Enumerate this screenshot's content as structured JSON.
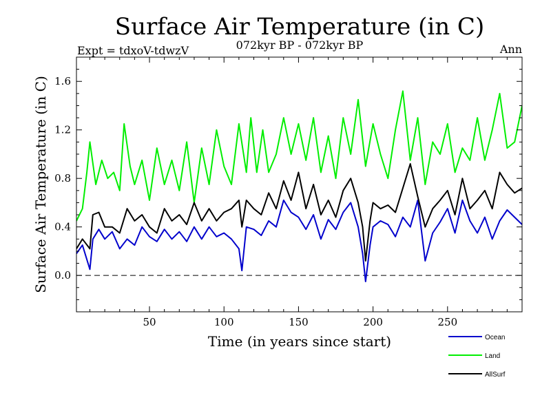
{
  "chart_data": {
    "type": "line",
    "title": "Surface Air Temperature (in C)",
    "subtitle_left": "Expt = tdxoV-tdwzV",
    "subtitle_center": "072kyr BP - 072kyr BP",
    "subtitle_right": "Ann",
    "xlabel": "Time (in years since start)",
    "ylabel": "Surface Air Temperature (in C)",
    "xlim": [
      1,
      300
    ],
    "ylim": [
      -0.3,
      1.8
    ],
    "x_ticks": [
      50,
      100,
      150,
      200,
      250
    ],
    "y_ticks": [
      "0.0",
      "0.4",
      "0.8",
      "1.2",
      "1.6"
    ],
    "y_tick_values": [
      0.0,
      0.4,
      0.8,
      1.2,
      1.6
    ],
    "zero_line": 0.0,
    "legend_position": "below-right",
    "series": [
      {
        "name": "Ocean",
        "color": "#0000cc",
        "points": [
          [
            1,
            0.18
          ],
          [
            5,
            0.25
          ],
          [
            10,
            0.05
          ],
          [
            12,
            0.3
          ],
          [
            16,
            0.38
          ],
          [
            20,
            0.3
          ],
          [
            25,
            0.36
          ],
          [
            30,
            0.22
          ],
          [
            35,
            0.3
          ],
          [
            40,
            0.25
          ],
          [
            45,
            0.4
          ],
          [
            50,
            0.32
          ],
          [
            55,
            0.28
          ],
          [
            60,
            0.38
          ],
          [
            65,
            0.3
          ],
          [
            70,
            0.36
          ],
          [
            75,
            0.28
          ],
          [
            80,
            0.4
          ],
          [
            85,
            0.3
          ],
          [
            90,
            0.4
          ],
          [
            95,
            0.32
          ],
          [
            100,
            0.35
          ],
          [
            105,
            0.3
          ],
          [
            110,
            0.22
          ],
          [
            112,
            0.04
          ],
          [
            115,
            0.4
          ],
          [
            120,
            0.38
          ],
          [
            125,
            0.33
          ],
          [
            130,
            0.45
          ],
          [
            135,
            0.4
          ],
          [
            140,
            0.62
          ],
          [
            145,
            0.52
          ],
          [
            150,
            0.48
          ],
          [
            155,
            0.38
          ],
          [
            160,
            0.5
          ],
          [
            165,
            0.3
          ],
          [
            170,
            0.46
          ],
          [
            175,
            0.38
          ],
          [
            180,
            0.52
          ],
          [
            185,
            0.6
          ],
          [
            190,
            0.4
          ],
          [
            193,
            0.18
          ],
          [
            195,
            -0.05
          ],
          [
            198,
            0.25
          ],
          [
            200,
            0.4
          ],
          [
            205,
            0.45
          ],
          [
            210,
            0.42
          ],
          [
            215,
            0.32
          ],
          [
            220,
            0.48
          ],
          [
            225,
            0.4
          ],
          [
            230,
            0.62
          ],
          [
            235,
            0.12
          ],
          [
            240,
            0.35
          ],
          [
            245,
            0.44
          ],
          [
            250,
            0.55
          ],
          [
            255,
            0.35
          ],
          [
            260,
            0.62
          ],
          [
            265,
            0.45
          ],
          [
            270,
            0.35
          ],
          [
            275,
            0.48
          ],
          [
            280,
            0.3
          ],
          [
            285,
            0.45
          ],
          [
            290,
            0.54
          ],
          [
            295,
            0.48
          ],
          [
            300,
            0.42
          ]
        ]
      },
      {
        "name": "Land",
        "color": "#00ee00",
        "points": [
          [
            1,
            0.45
          ],
          [
            5,
            0.55
          ],
          [
            8,
            0.85
          ],
          [
            10,
            1.1
          ],
          [
            14,
            0.75
          ],
          [
            18,
            0.95
          ],
          [
            22,
            0.8
          ],
          [
            26,
            0.85
          ],
          [
            30,
            0.7
          ],
          [
            33,
            1.25
          ],
          [
            37,
            0.9
          ],
          [
            40,
            0.75
          ],
          [
            45,
            0.95
          ],
          [
            50,
            0.62
          ],
          [
            55,
            1.05
          ],
          [
            60,
            0.75
          ],
          [
            65,
            0.95
          ],
          [
            70,
            0.7
          ],
          [
            75,
            1.1
          ],
          [
            80,
            0.6
          ],
          [
            85,
            1.05
          ],
          [
            90,
            0.75
          ],
          [
            95,
            1.2
          ],
          [
            100,
            0.9
          ],
          [
            105,
            0.75
          ],
          [
            110,
            1.25
          ],
          [
            115,
            0.85
          ],
          [
            118,
            1.3
          ],
          [
            122,
            0.85
          ],
          [
            126,
            1.2
          ],
          [
            130,
            0.85
          ],
          [
            135,
            1.0
          ],
          [
            140,
            1.3
          ],
          [
            145,
            1.0
          ],
          [
            150,
            1.25
          ],
          [
            155,
            0.95
          ],
          [
            160,
            1.3
          ],
          [
            165,
            0.85
          ],
          [
            170,
            1.15
          ],
          [
            175,
            0.8
          ],
          [
            180,
            1.3
          ],
          [
            185,
            1.0
          ],
          [
            190,
            1.45
          ],
          [
            195,
            0.9
          ],
          [
            200,
            1.25
          ],
          [
            205,
            1.0
          ],
          [
            210,
            0.8
          ],
          [
            215,
            1.2
          ],
          [
            220,
            1.52
          ],
          [
            225,
            0.95
          ],
          [
            230,
            1.3
          ],
          [
            235,
            0.75
          ],
          [
            240,
            1.1
          ],
          [
            245,
            1.0
          ],
          [
            250,
            1.25
          ],
          [
            255,
            0.85
          ],
          [
            260,
            1.05
          ],
          [
            265,
            0.95
          ],
          [
            270,
            1.3
          ],
          [
            275,
            0.95
          ],
          [
            280,
            1.2
          ],
          [
            285,
            1.5
          ],
          [
            290,
            1.05
          ],
          [
            295,
            1.1
          ],
          [
            300,
            1.4
          ]
        ]
      },
      {
        "name": "AllSurf",
        "color": "#000000",
        "points": [
          [
            1,
            0.22
          ],
          [
            5,
            0.3
          ],
          [
            10,
            0.22
          ],
          [
            12,
            0.5
          ],
          [
            16,
            0.52
          ],
          [
            20,
            0.4
          ],
          [
            25,
            0.4
          ],
          [
            30,
            0.35
          ],
          [
            35,
            0.55
          ],
          [
            40,
            0.45
          ],
          [
            45,
            0.5
          ],
          [
            50,
            0.4
          ],
          [
            55,
            0.35
          ],
          [
            60,
            0.55
          ],
          [
            65,
            0.45
          ],
          [
            70,
            0.5
          ],
          [
            75,
            0.42
          ],
          [
            80,
            0.6
          ],
          [
            85,
            0.45
          ],
          [
            90,
            0.55
          ],
          [
            95,
            0.45
          ],
          [
            100,
            0.52
          ],
          [
            105,
            0.55
          ],
          [
            110,
            0.62
          ],
          [
            112,
            0.4
          ],
          [
            115,
            0.62
          ],
          [
            120,
            0.55
          ],
          [
            125,
            0.5
          ],
          [
            130,
            0.68
          ],
          [
            135,
            0.55
          ],
          [
            140,
            0.78
          ],
          [
            145,
            0.62
          ],
          [
            150,
            0.85
          ],
          [
            155,
            0.55
          ],
          [
            160,
            0.75
          ],
          [
            165,
            0.5
          ],
          [
            170,
            0.62
          ],
          [
            175,
            0.48
          ],
          [
            180,
            0.7
          ],
          [
            185,
            0.8
          ],
          [
            190,
            0.6
          ],
          [
            193,
            0.4
          ],
          [
            195,
            0.12
          ],
          [
            198,
            0.45
          ],
          [
            200,
            0.6
          ],
          [
            205,
            0.55
          ],
          [
            210,
            0.58
          ],
          [
            215,
            0.52
          ],
          [
            220,
            0.72
          ],
          [
            225,
            0.92
          ],
          [
            230,
            0.65
          ],
          [
            235,
            0.4
          ],
          [
            240,
            0.55
          ],
          [
            245,
            0.62
          ],
          [
            250,
            0.7
          ],
          [
            255,
            0.5
          ],
          [
            260,
            0.8
          ],
          [
            265,
            0.55
          ],
          [
            270,
            0.62
          ],
          [
            275,
            0.7
          ],
          [
            280,
            0.55
          ],
          [
            285,
            0.85
          ],
          [
            290,
            0.75
          ],
          [
            295,
            0.68
          ],
          [
            300,
            0.72
          ]
        ]
      }
    ]
  }
}
